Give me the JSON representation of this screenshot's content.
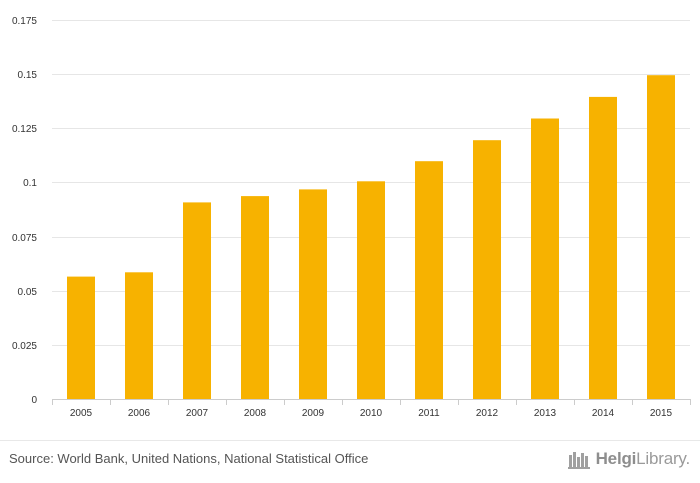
{
  "chart_data": {
    "type": "bar",
    "title": "",
    "xlabel": "",
    "ylabel": "",
    "categories": [
      "2005",
      "2006",
      "2007",
      "2008",
      "2009",
      "2010",
      "2011",
      "2012",
      "2013",
      "2014",
      "2015"
    ],
    "values": [
      0.0565,
      0.0585,
      0.0908,
      0.0937,
      0.0968,
      0.1005,
      0.1098,
      0.1195,
      0.1295,
      0.1395,
      0.1495
    ],
    "ylim": [
      0,
      0.175
    ],
    "yticks": [
      "0",
      "0.025",
      "0.05",
      "0.075",
      "0.1",
      "0.125",
      "0.15",
      "0.175"
    ],
    "ytick_values": [
      0,
      0.025,
      0.05,
      0.075,
      0.1,
      0.125,
      0.15,
      0.175
    ],
    "grid": true,
    "bar_color": "#f7b200"
  },
  "footer": {
    "source": "Source: World Bank, United Nations, National Statistical Office",
    "brand_bold": "Helgi",
    "brand_rest": "Library."
  }
}
